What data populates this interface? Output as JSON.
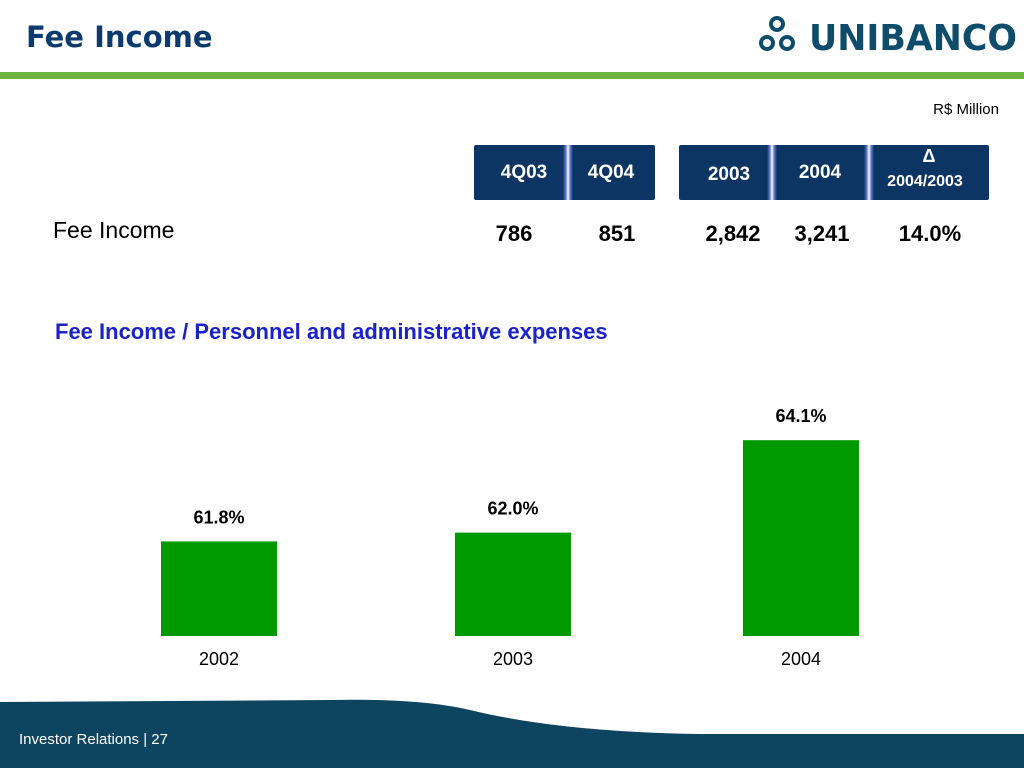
{
  "header": {
    "title": "Fee Income",
    "logo_text": "UNIBANCO",
    "accent_color": "#6cb33f",
    "title_color": "#0a3a6e"
  },
  "table": {
    "unit": "R$ Million",
    "columns": [
      "4Q03",
      "4Q04",
      "2003",
      "2004"
    ],
    "delta_symbol": "Δ",
    "delta_label": "2004/2003",
    "row_label": "Fee Income",
    "values": [
      "786",
      "851",
      "2,842",
      "3,241",
      "14.0%"
    ]
  },
  "chart_data": {
    "type": "bar",
    "title": "Fee Income / Personnel and administrative expenses",
    "categories": [
      "2002",
      "2003",
      "2004"
    ],
    "values": [
      61.8,
      62.0,
      64.1
    ],
    "value_labels": [
      "61.8%",
      "62.0%",
      "64.1%"
    ],
    "bar_color": "#009900",
    "grid": false
  },
  "footer": {
    "text": "Investor Relations | 27",
    "color": "#0d4560"
  }
}
